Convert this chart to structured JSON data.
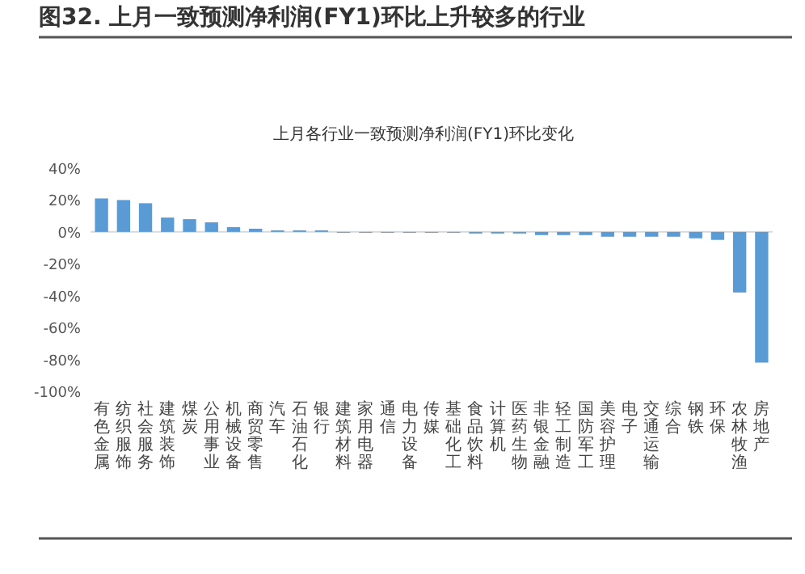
{
  "chart_data": {
    "type": "bar",
    "title": "图32. 上月一致预测净利润(FY1)环比上升较多的行业",
    "subtitle": "上月各行业一致预测净利润(FY1)环比变化",
    "categories": [
      "有色金属",
      "纺织服饰",
      "社会服务",
      "建筑装饰",
      "煤炭",
      "公用事业",
      "机械设备",
      "商贸零售",
      "汽车",
      "石油石化",
      "银行",
      "建筑材料",
      "家用电器",
      "通信",
      "电力设备",
      "传媒",
      "基础化工",
      "食品饮料",
      "计算机",
      "医药生物",
      "非银金融",
      "轻工制造",
      "国防军工",
      "美容护理",
      "电子",
      "交通运输",
      "综合",
      "钢铁",
      "环保",
      "农林牧渔",
      "房地产"
    ],
    "values": [
      21,
      20,
      18,
      9,
      8,
      6,
      3,
      2,
      1,
      1,
      1,
      -0.5,
      -0.5,
      -0.5,
      -0.5,
      -0.5,
      -0.5,
      -1,
      -1,
      -1,
      -2,
      -2,
      -2,
      -3,
      -3,
      -3,
      -3,
      -4,
      -5,
      -38,
      -82
    ],
    "color": "#5b9bd5",
    "ylim": [
      -100,
      40
    ],
    "yticks": [
      {
        "value": 40,
        "label": "40%"
      },
      {
        "value": 20,
        "label": "20%"
      },
      {
        "value": 0,
        "label": "0%"
      },
      {
        "value": -20,
        "label": "-20%"
      },
      {
        "value": -40,
        "label": "-40%"
      },
      {
        "value": -60,
        "label": "-60%"
      },
      {
        "value": -80,
        "label": "-80%"
      },
      {
        "value": -100,
        "label": "-100%"
      }
    ]
  }
}
